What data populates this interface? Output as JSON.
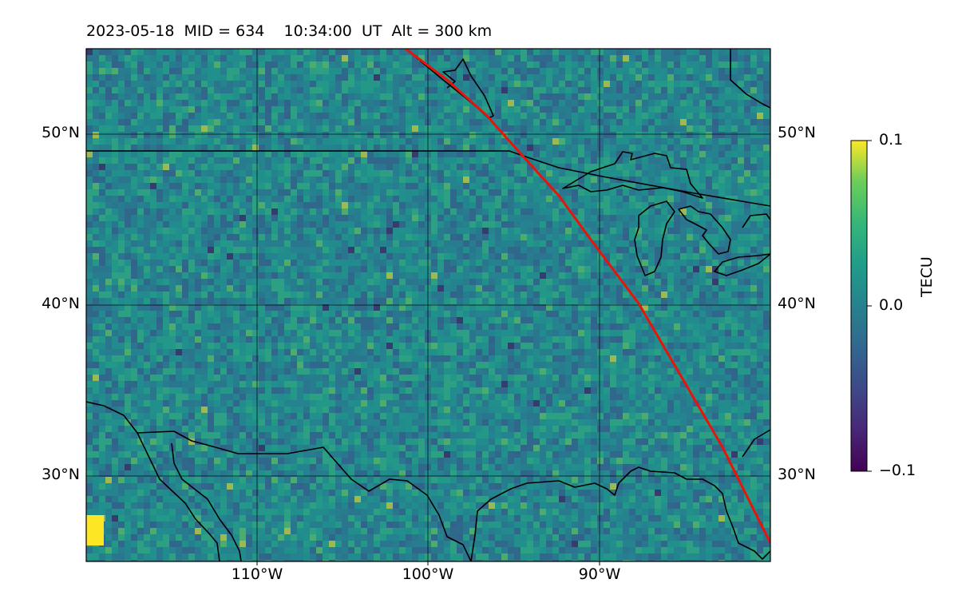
{
  "header": {
    "title": "2023-05-18  MID = 634    10:34:00  UT  Alt = 300 km"
  },
  "map": {
    "projection": "plate-carree",
    "lon_range": [
      -120,
      -80
    ],
    "lat_range": [
      25,
      55
    ],
    "latitude_labels": [
      "50°N",
      "40°N",
      "30°N"
    ],
    "longitude_labels": [
      "110°W",
      "100°W",
      "90°W"
    ],
    "gridlines": true,
    "field": "TEC perturbation (mostly teal/green noise with scattered yellow and dark-purple cells)",
    "terminator_color": "#e8140a",
    "coastline_color": "#000000"
  },
  "colorbar": {
    "label": "TECU",
    "colormap": "viridis",
    "ticks": [
      "0.1",
      "0.0",
      "−0.1"
    ],
    "range": [
      -0.1,
      0.1
    ]
  }
}
